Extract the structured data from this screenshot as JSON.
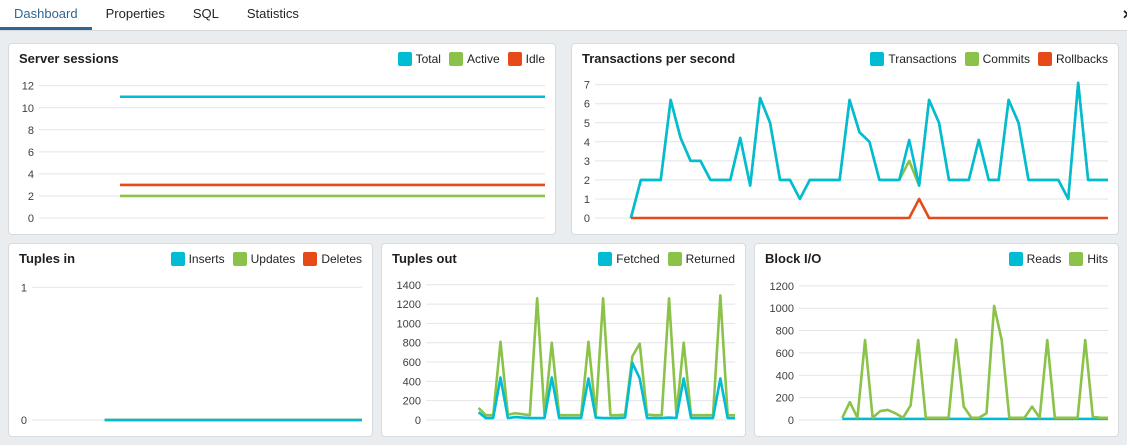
{
  "tabs": {
    "items": [
      {
        "label": "Dashboard",
        "active": true
      },
      {
        "label": "Properties",
        "active": false
      },
      {
        "label": "SQL",
        "active": false
      },
      {
        "label": "Statistics",
        "active": false
      }
    ],
    "close_icon": "✕"
  },
  "colors": {
    "cyan": "#00bcd4",
    "green": "#8bc34a",
    "red": "#e64a19",
    "active_tab": "#326690"
  },
  "panels": [
    {
      "title": "Server sessions",
      "legend": [
        {
          "label": "Total",
          "color": "#00bcd4"
        },
        {
          "label": "Active",
          "color": "#8bc34a"
        },
        {
          "label": "Idle",
          "color": "#e64a19"
        }
      ]
    },
    {
      "title": "Transactions per second",
      "legend": [
        {
          "label": "Transactions",
          "color": "#00bcd4"
        },
        {
          "label": "Commits",
          "color": "#8bc34a"
        },
        {
          "label": "Rollbacks",
          "color": "#e64a19"
        }
      ]
    },
    {
      "title": "Tuples in",
      "legend": [
        {
          "label": "Inserts",
          "color": "#00bcd4"
        },
        {
          "label": "Updates",
          "color": "#8bc34a"
        },
        {
          "label": "Deletes",
          "color": "#e64a19"
        }
      ]
    },
    {
      "title": "Tuples out",
      "legend": [
        {
          "label": "Fetched",
          "color": "#00bcd4"
        },
        {
          "label": "Returned",
          "color": "#8bc34a"
        }
      ]
    },
    {
      "title": "Block I/O",
      "legend": [
        {
          "label": "Reads",
          "color": "#00bcd4"
        },
        {
          "label": "Hits",
          "color": "#8bc34a"
        }
      ]
    }
  ],
  "chart_data": [
    {
      "type": "line",
      "title": "Server sessions",
      "ylim": [
        0,
        12.7
      ],
      "yticks": [
        0,
        2,
        4,
        6,
        8,
        10,
        12
      ],
      "grid": true,
      "legend_position": "top-right",
      "start_frac": 0.16,
      "series": [
        {
          "name": "Idle",
          "color": "#e64a19",
          "values": [
            3,
            3
          ]
        },
        {
          "name": "Active",
          "color": "#8bc34a",
          "values": [
            2,
            2
          ]
        },
        {
          "name": "Total",
          "color": "#00bcd4",
          "values": [
            11,
            11
          ]
        }
      ]
    },
    {
      "type": "line",
      "title": "Transactions per second",
      "ylim": [
        0,
        7.35
      ],
      "yticks": [
        0,
        1,
        2,
        3,
        4,
        5,
        6,
        7
      ],
      "grid": true,
      "legend_position": "top-right",
      "start_frac": 0.07,
      "series": [
        {
          "name": "Commits",
          "color": "#8bc34a",
          "values": [
            0,
            2,
            2,
            2,
            6.2,
            4.2,
            3,
            3,
            2,
            2,
            2,
            4.2,
            1.7,
            6.3,
            5,
            2,
            2,
            1,
            2,
            2,
            2,
            2,
            6.2,
            4.5,
            4,
            2,
            2,
            2,
            3,
            1.7,
            6.2,
            5,
            2,
            2,
            2,
            4.1,
            2,
            2,
            6.2,
            5,
            2,
            2,
            2,
            2,
            1,
            7.1,
            2,
            2,
            2
          ]
        },
        {
          "name": "Transactions",
          "color": "#00bcd4",
          "values": [
            0,
            2,
            2,
            2,
            6.2,
            4.2,
            3,
            3,
            2,
            2,
            2,
            4.2,
            1.7,
            6.3,
            5,
            2,
            2,
            1,
            2,
            2,
            2,
            2,
            6.2,
            4.5,
            4,
            2,
            2,
            2,
            4.1,
            1.7,
            6.2,
            5,
            2,
            2,
            2,
            4.1,
            2,
            2,
            6.2,
            5,
            2,
            2,
            2,
            2,
            1,
            7.1,
            2,
            2,
            2
          ]
        },
        {
          "name": "Rollbacks",
          "color": "#e64a19",
          "values": [
            0,
            0,
            0,
            0,
            0,
            0,
            0,
            0,
            0,
            0,
            0,
            0,
            0,
            0,
            0,
            0,
            0,
            0,
            0,
            0,
            0,
            0,
            0,
            0,
            0,
            0,
            0,
            0,
            0,
            1,
            0,
            0,
            0,
            0,
            0,
            0,
            0,
            0,
            0,
            0,
            0,
            0,
            0,
            0,
            0,
            0,
            0,
            0,
            0
          ]
        }
      ]
    },
    {
      "type": "line",
      "title": "Tuples in",
      "ylim": [
        0,
        1.07
      ],
      "yticks": [
        0,
        1
      ],
      "grid": true,
      "legend_position": "top-right",
      "start_frac": 0.22,
      "series": [
        {
          "name": "Deletes",
          "color": "#e64a19",
          "values": [
            0,
            0
          ]
        },
        {
          "name": "Updates",
          "color": "#8bc34a",
          "values": [
            0,
            0
          ]
        },
        {
          "name": "Inserts",
          "color": "#00bcd4",
          "values": [
            0,
            0
          ]
        }
      ]
    },
    {
      "type": "line",
      "title": "Tuples out",
      "ylim": [
        0,
        1470
      ],
      "yticks": [
        0,
        200,
        400,
        600,
        800,
        1000,
        1200,
        1400
      ],
      "grid": true,
      "legend_position": "top-right",
      "start_frac": 0.17,
      "series": [
        {
          "name": "Returned",
          "color": "#8bc34a",
          "values": [
            125,
            50,
            50,
            810,
            55,
            70,
            60,
            50,
            1260,
            50,
            800,
            50,
            50,
            50,
            50,
            810,
            55,
            1260,
            50,
            50,
            55,
            660,
            790,
            55,
            50,
            50,
            1260,
            55,
            800,
            50,
            50,
            50,
            50,
            1290,
            50,
            50
          ]
        },
        {
          "name": "Fetched",
          "color": "#00bcd4",
          "values": [
            80,
            20,
            20,
            440,
            20,
            30,
            25,
            20,
            20,
            20,
            440,
            20,
            20,
            20,
            20,
            430,
            25,
            20,
            20,
            20,
            25,
            590,
            430,
            20,
            20,
            20,
            25,
            20,
            430,
            20,
            20,
            20,
            20,
            430,
            20,
            20
          ]
        }
      ]
    },
    {
      "type": "line",
      "title": "Block I/O",
      "ylim": [
        0,
        1270
      ],
      "yticks": [
        0,
        200,
        400,
        600,
        800,
        1000,
        1200
      ],
      "grid": true,
      "legend_position": "top-right",
      "start_frac": 0.14,
      "series": [
        {
          "name": "Reads",
          "color": "#00bcd4",
          "values": [
            10,
            10
          ]
        },
        {
          "name": "Hits",
          "color": "#8bc34a",
          "values": [
            20,
            160,
            20,
            715,
            20,
            80,
            90,
            60,
            20,
            130,
            715,
            20,
            20,
            20,
            20,
            720,
            120,
            20,
            20,
            60,
            1020,
            715,
            20,
            20,
            20,
            120,
            20,
            715,
            20,
            20,
            20,
            20,
            715,
            30,
            20,
            20
          ]
        }
      ]
    }
  ]
}
